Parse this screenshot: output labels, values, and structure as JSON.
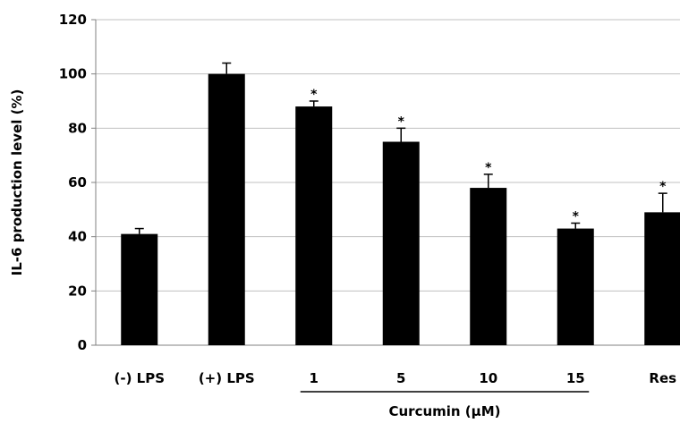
{
  "chart_data": {
    "type": "bar",
    "title": "",
    "xlabel": "",
    "ylabel": "IL-6 production level (%)",
    "ylim": [
      0,
      120
    ],
    "yticks": [
      0,
      20,
      40,
      60,
      80,
      100,
      120
    ],
    "ytick_labels": [
      "0",
      "20",
      "40",
      "60",
      "80",
      "100",
      "120"
    ],
    "grid": true,
    "legend": "none",
    "bar_color": "#000000",
    "grid_color": "#c0c0c0",
    "categories": [
      "(-) LPS",
      "(+) LPS",
      "1",
      "5",
      "10",
      "15",
      "Res"
    ],
    "values": [
      41,
      100,
      88,
      75,
      58,
      43,
      49
    ],
    "errors": [
      2,
      4,
      2,
      5,
      5,
      2,
      7
    ],
    "significance": [
      "",
      "",
      "*",
      "*",
      "*",
      "*",
      "*"
    ],
    "group_label": "Curcumin  (μM)",
    "group_categories": [
      "1",
      "5",
      "10",
      "15"
    ]
  }
}
